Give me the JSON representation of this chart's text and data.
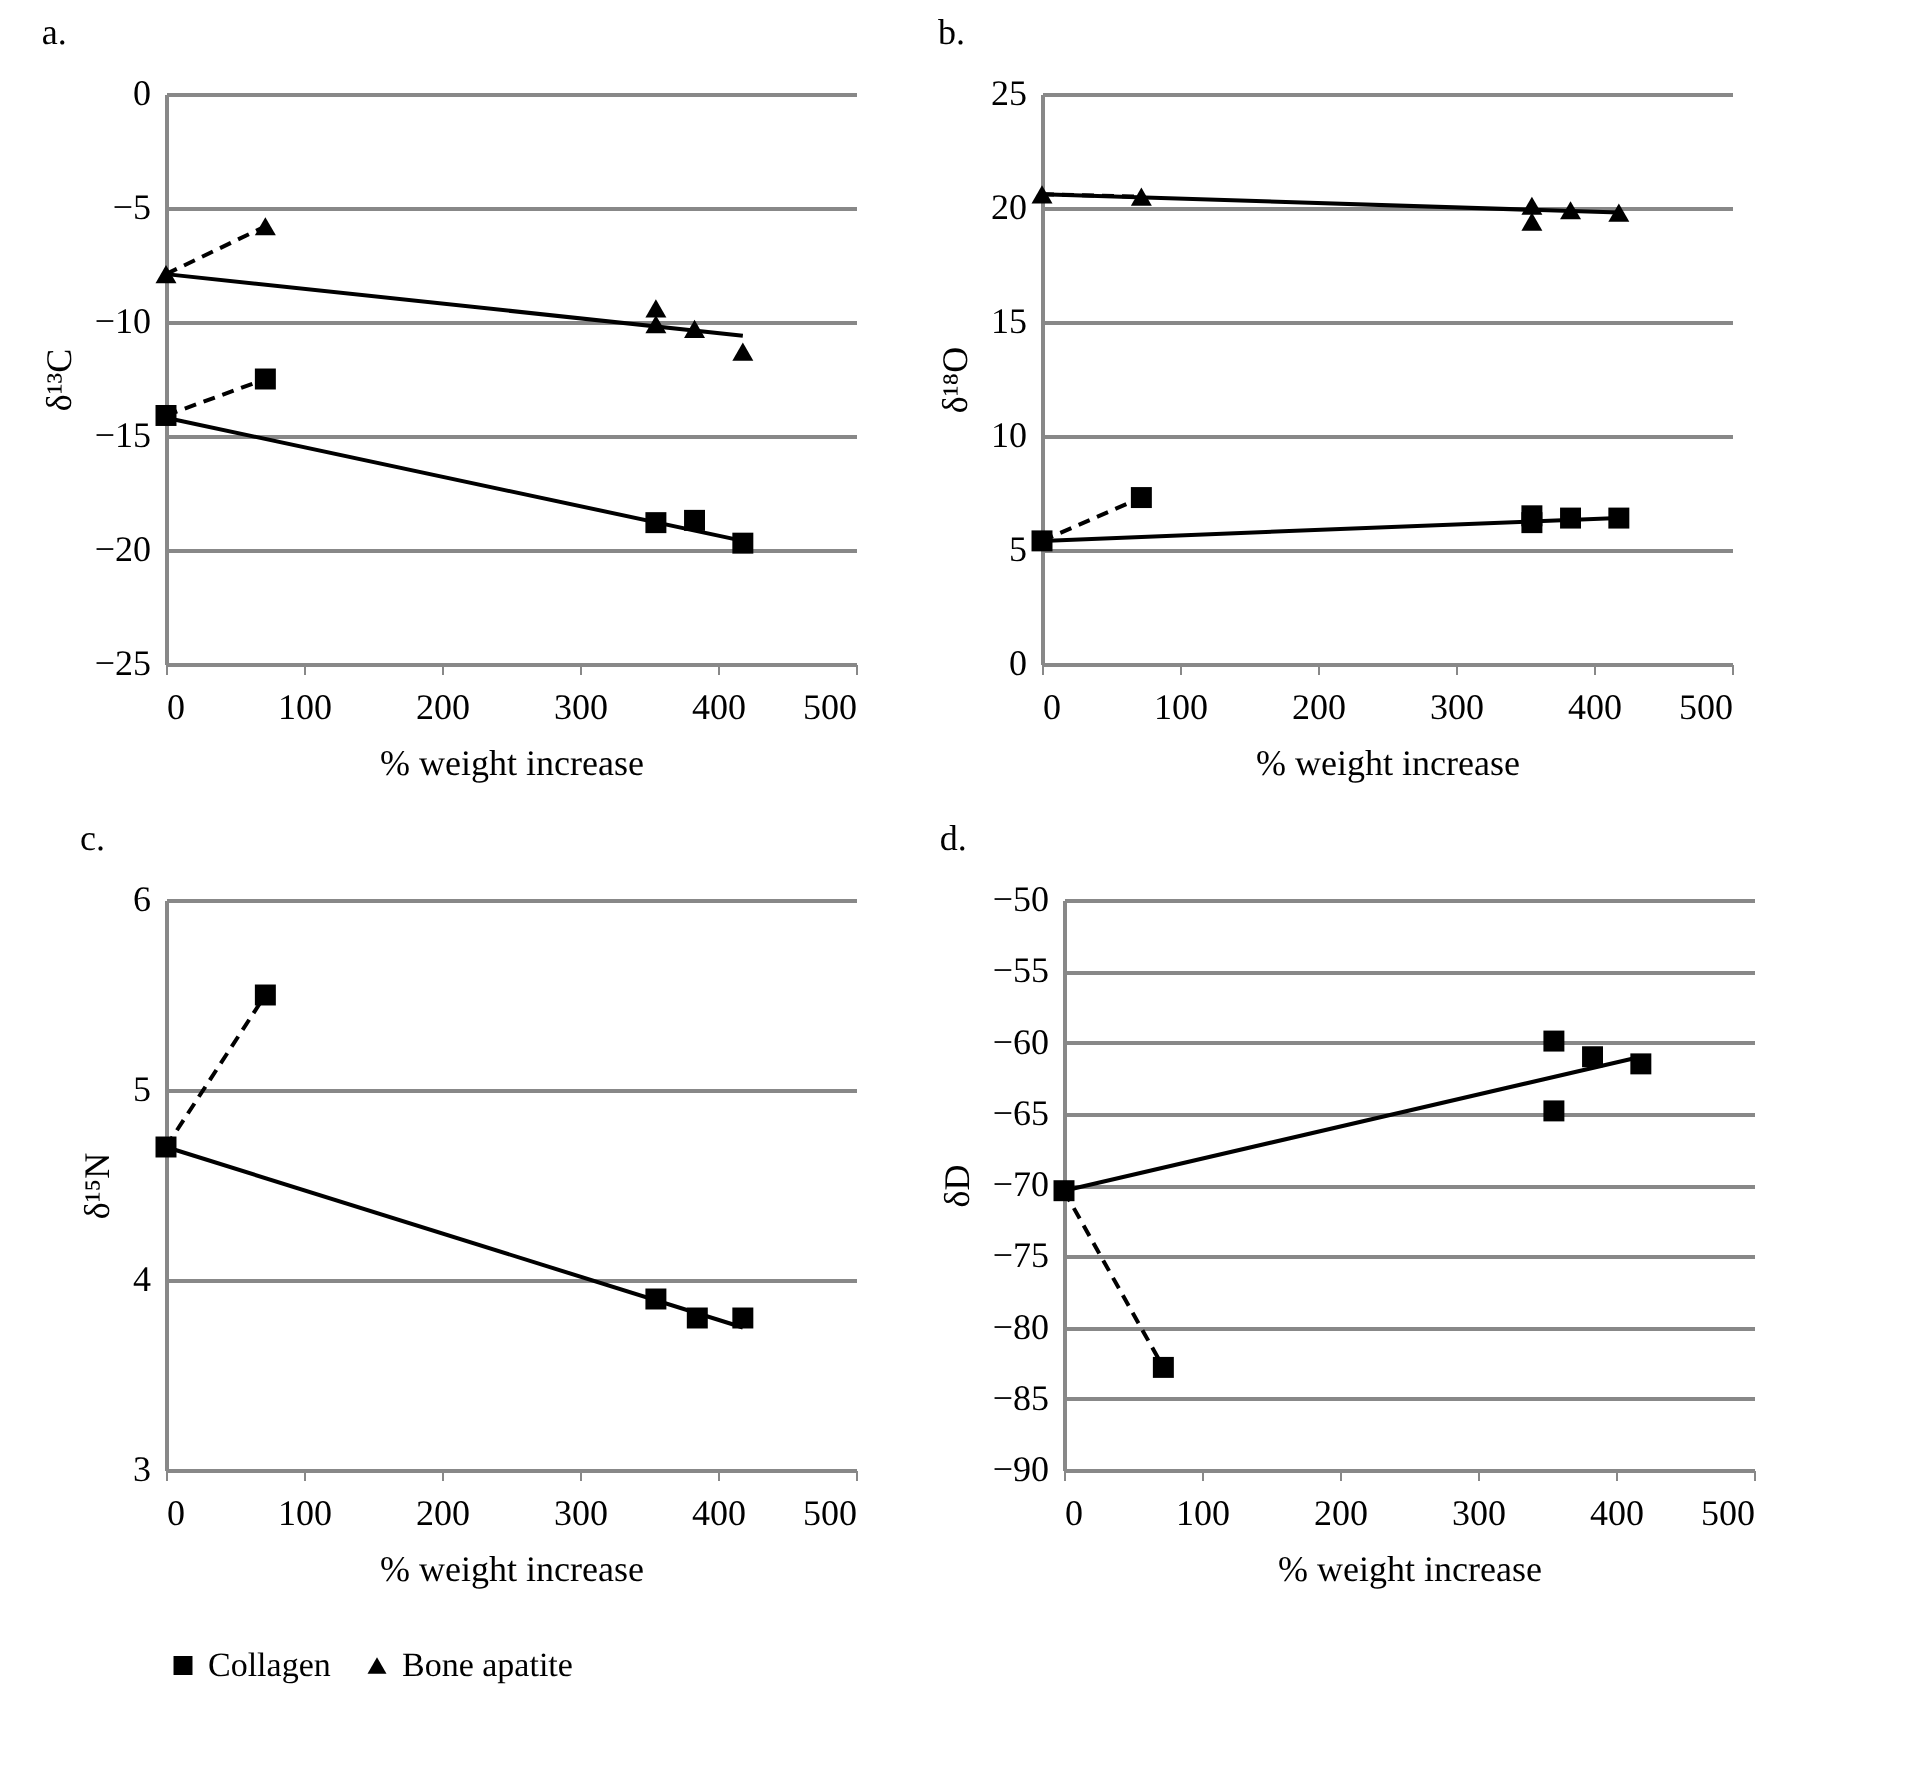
{
  "chart_data": [
    {
      "type": "scatter",
      "title": "a.",
      "xlabel": "% weight increase",
      "ylabel": "δ¹³C",
      "xlim": [
        0,
        500
      ],
      "xticks": [
        0,
        100,
        200,
        300,
        400,
        500
      ],
      "ylim": [
        -25,
        0
      ],
      "yticks": [
        -25,
        -20,
        -15,
        -10,
        -5,
        0
      ],
      "grid": "y",
      "legend": "bottom left",
      "series": [
        {
          "type": "line",
          "color": "#000000",
          "line_style": "solid",
          "marker": "none",
          "x": [
            0,
            418
          ],
          "values": [
            -7.9,
            -10.6
          ]
        },
        {
          "type": "line",
          "color": "#000000",
          "line_style": "dashed",
          "marker": "none",
          "x": [
            0,
            72
          ],
          "values": [
            -7.9,
            -5.8
          ]
        },
        {
          "type": "line",
          "color": "#000000",
          "line_style": "solid",
          "marker": "none",
          "x": [
            0,
            418
          ],
          "values": [
            -14.2,
            -19.6
          ]
        },
        {
          "type": "line",
          "color": "#000000",
          "line_style": "dashed",
          "marker": "none",
          "x": [
            0,
            72
          ],
          "values": [
            -14.1,
            -12.5
          ]
        },
        {
          "type": "scatter",
          "name": "Collagen",
          "color": "#000000",
          "marker": "square",
          "x": [
            0,
            72,
            355,
            383,
            418
          ],
          "values": [
            -14.1,
            -12.5,
            -18.8,
            -18.7,
            -19.7
          ]
        },
        {
          "type": "scatter",
          "name": "Bone apatite",
          "color": "#000000",
          "marker": "triangle",
          "x": [
            0,
            72,
            355,
            355,
            383,
            418
          ],
          "values": [
            -7.9,
            -5.8,
            -9.4,
            -10.1,
            -10.3,
            -11.3
          ]
        }
      ]
    },
    {
      "type": "scatter",
      "title": "b.",
      "xlabel": "% weight increase",
      "ylabel": "δ¹⁸O",
      "xlim": [
        0,
        500
      ],
      "xticks": [
        0,
        100,
        200,
        300,
        400,
        500
      ],
      "ylim": [
        0,
        25
      ],
      "yticks": [
        0,
        5,
        10,
        15,
        20,
        25
      ],
      "grid": "y",
      "legend": "bottom left",
      "series": [
        {
          "type": "line",
          "color": "#000000",
          "line_style": "solid",
          "marker": "none",
          "x": [
            0,
            418
          ],
          "values": [
            20.6,
            19.8
          ]
        },
        {
          "type": "line",
          "color": "#000000",
          "line_style": "dashed",
          "marker": "none",
          "x": [
            0,
            72
          ],
          "values": [
            20.6,
            20.5
          ]
        },
        {
          "type": "line",
          "color": "#000000",
          "line_style": "solid",
          "marker": "none",
          "x": [
            0,
            418
          ],
          "values": [
            5.4,
            6.4
          ]
        },
        {
          "type": "line",
          "color": "#000000",
          "line_style": "dashed",
          "marker": "none",
          "x": [
            0,
            72
          ],
          "values": [
            5.4,
            7.3
          ]
        },
        {
          "type": "scatter",
          "name": "Collagen",
          "color": "#000000",
          "marker": "square",
          "x": [
            0,
            72,
            355,
            355,
            383,
            418
          ],
          "values": [
            5.4,
            7.3,
            6.5,
            6.2,
            6.4,
            6.4
          ]
        },
        {
          "type": "scatter",
          "name": "Bone apatite",
          "color": "#000000",
          "marker": "triangle",
          "x": [
            0,
            72,
            355,
            355,
            383,
            418
          ],
          "values": [
            20.6,
            20.5,
            20.1,
            19.4,
            19.9,
            19.8
          ]
        }
      ]
    },
    {
      "type": "scatter",
      "title": "c.",
      "xlabel": "% weight increase",
      "ylabel": "δ¹⁵N",
      "xlim": [
        0,
        500
      ],
      "xticks": [
        0,
        100,
        200,
        300,
        400,
        500
      ],
      "ylim": [
        3,
        6
      ],
      "yticks": [
        3,
        4,
        5,
        6
      ],
      "grid": "y",
      "legend": "bottom left",
      "series": [
        {
          "type": "line",
          "color": "#000000",
          "line_style": "solid",
          "marker": "none",
          "x": [
            0,
            418
          ],
          "values": [
            4.7,
            3.75
          ]
        },
        {
          "type": "line",
          "color": "#000000",
          "line_style": "dashed",
          "marker": "none",
          "x": [
            0,
            72
          ],
          "values": [
            4.7,
            5.5
          ]
        },
        {
          "type": "scatter",
          "name": "Collagen",
          "color": "#000000",
          "marker": "square",
          "x": [
            0,
            72,
            355,
            385,
            418
          ],
          "values": [
            4.7,
            5.5,
            3.9,
            3.8,
            3.8
          ]
        }
      ]
    },
    {
      "type": "scatter",
      "title": "d.",
      "xlabel": "% weight increase",
      "ylabel": "δD",
      "xlim": [
        0,
        500
      ],
      "xticks": [
        0,
        100,
        200,
        300,
        400,
        500
      ],
      "ylim": [
        -90,
        -50
      ],
      "yticks": [
        -90,
        -85,
        -80,
        -75,
        -70,
        -65,
        -60,
        -55,
        -50
      ],
      "grid": "y",
      "legend": "bottom left",
      "series": [
        {
          "type": "line",
          "color": "#000000",
          "line_style": "solid",
          "marker": "none",
          "x": [
            0,
            418
          ],
          "values": [
            -70.4,
            -61
          ]
        },
        {
          "type": "line",
          "color": "#000000",
          "line_style": "dashed",
          "marker": "none",
          "x": [
            0,
            72
          ],
          "values": [
            -70.4,
            -82.8
          ]
        },
        {
          "type": "scatter",
          "name": "Collagen",
          "color": "#000000",
          "marker": "square",
          "x": [
            0,
            72,
            355,
            355,
            383,
            418
          ],
          "values": [
            -70.4,
            -82.8,
            -59.9,
            -64.8,
            -61,
            -61.5
          ]
        }
      ]
    }
  ]
}
